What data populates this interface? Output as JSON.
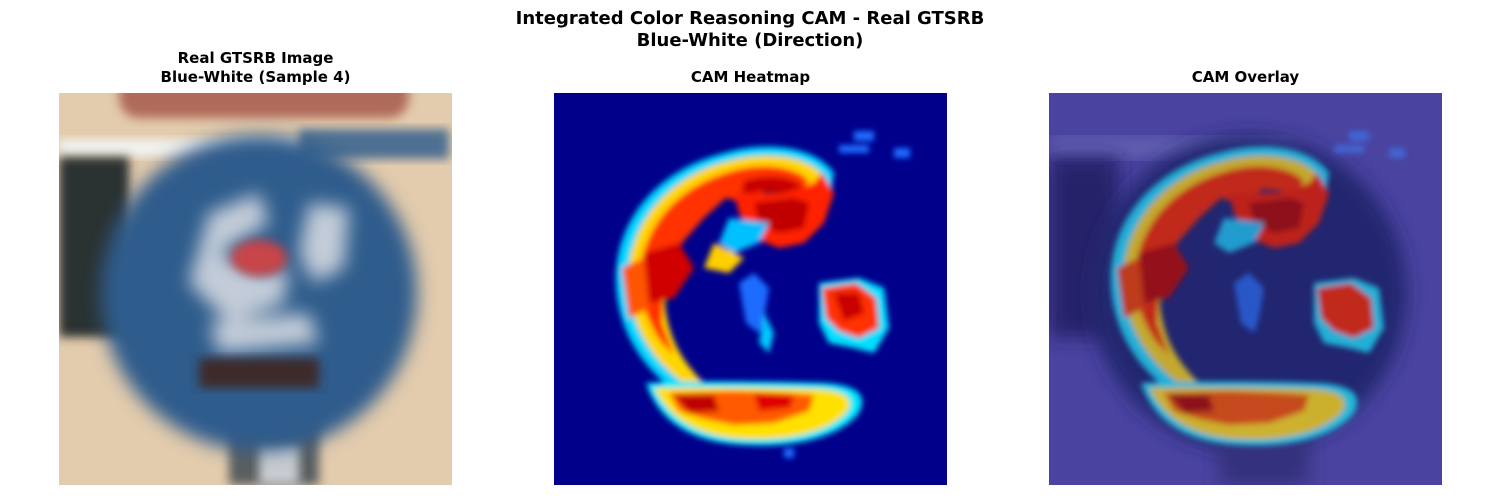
{
  "figure": {
    "title_line1": "Integrated Color Reasoning CAM - Real GTSRB",
    "title_line2": "Blue-White (Direction)"
  },
  "panels": [
    {
      "title_line1": "Real GTSRB Image",
      "title_line2": "Blue-White (Sample 4)",
      "content": "photo of blurred blue circular direction sign"
    },
    {
      "title_line1": "CAM Heatmap",
      "title_line2": "",
      "colormap": "jet"
    },
    {
      "title_line1": "CAM Overlay",
      "title_line2": "",
      "colormap": "jet"
    }
  ],
  "colors": {
    "jet_low": "#00008b",
    "jet_high": "#b20000",
    "sign_blue": "#2f5b8c",
    "wall": "#e6cfb0"
  }
}
